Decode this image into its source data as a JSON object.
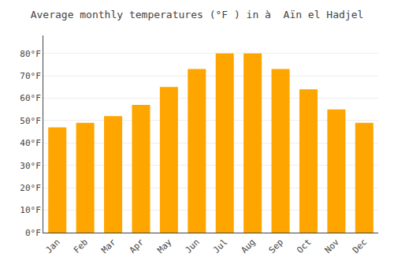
{
  "chart_data": {
    "type": "bar",
    "title": "Average monthly temperatures (°F ) in à  Aïn el Hadjel",
    "categories": [
      "Jan",
      "Feb",
      "Mar",
      "Apr",
      "May",
      "Jun",
      "Jul",
      "Aug",
      "Sep",
      "Oct",
      "Nov",
      "Dec"
    ],
    "values": [
      47,
      49,
      52,
      57,
      65,
      73,
      80,
      80,
      73,
      64,
      55,
      49
    ],
    "color": "#FFA500",
    "ylim": [
      0,
      88
    ],
    "yticks": [
      {
        "value": 0,
        "label": "0°F"
      },
      {
        "value": 10,
        "label": "10°F"
      },
      {
        "value": 20,
        "label": "20°F"
      },
      {
        "value": 30,
        "label": "30°F"
      },
      {
        "value": 40,
        "label": "40°F"
      },
      {
        "value": 50,
        "label": "50°F"
      },
      {
        "value": 60,
        "label": "60°F"
      },
      {
        "value": 70,
        "label": "70°F"
      },
      {
        "value": 80,
        "label": "80°F"
      }
    ],
    "grid": true
  }
}
